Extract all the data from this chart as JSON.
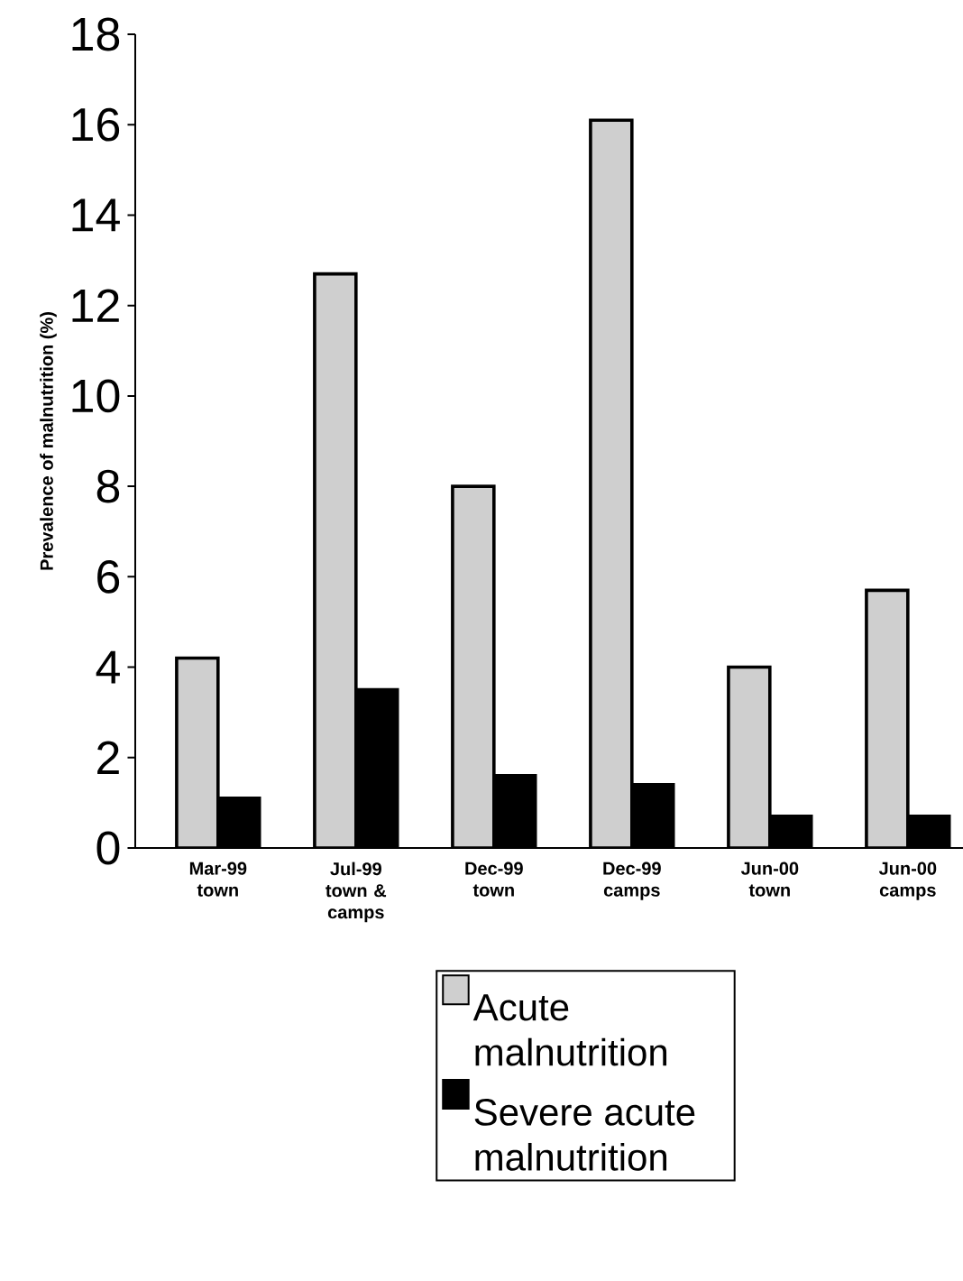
{
  "chart_data": {
    "type": "bar",
    "ylabel": "Prevalence of malnutrition (%)",
    "categories": [
      "Mar-99 town",
      "Jul-99 town & camps",
      "Dec-99 town",
      "Dec-99 camps",
      "Jun-00 town",
      "Jun-00 camps"
    ],
    "series": [
      {
        "name": "Acute malnutrition",
        "color": "#cfcfcf",
        "values": [
          4.2,
          12.7,
          8.0,
          16.1,
          4.0,
          5.7
        ]
      },
      {
        "name": "Severe acute malnutrition",
        "color": "#000000",
        "values": [
          1.1,
          3.5,
          1.6,
          1.4,
          0.7,
          0.7
        ]
      }
    ],
    "ylim": [
      0,
      18
    ],
    "yticks": [
      0,
      2,
      4,
      6,
      8,
      10,
      12,
      14,
      16,
      18
    ],
    "legend": "bottom"
  }
}
